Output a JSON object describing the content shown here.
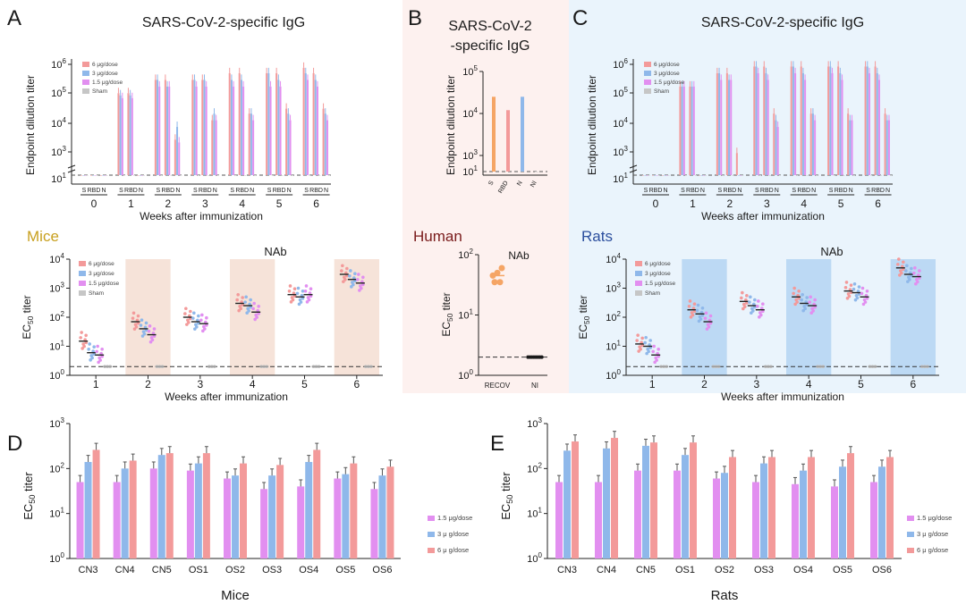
{
  "colors": {
    "dose6": "#f39a9a",
    "dose3": "#8fb8ea",
    "dose15": "#e28ff0",
    "sham": "#c6c6c6",
    "human": "#f5a565",
    "bgHuman": "#fdf1ef",
    "bgRats": "#eaf4fc",
    "shadeMice": "#f6e3d9",
    "shadeRats": "#bcd9f4",
    "mice": "#c8a01f",
    "human_label": "#7a1c1c",
    "rats": "#2c4f9e"
  },
  "panel_labels": {
    "A": "A",
    "B": "B",
    "C": "C",
    "D": "D",
    "E": "E"
  },
  "species": {
    "mice": "Mice",
    "human": "Human",
    "rats": "Rats"
  },
  "chart_data": [
    {
      "id": "A_top",
      "type": "bar",
      "title": "SARS-CoV-2-specific IgG",
      "xlabel": "Weeks after immunization",
      "ylabel": "Endpoint dilution titer",
      "scale": "log",
      "ylim": [
        10,
        1000000
      ],
      "break_after": "10^1",
      "groups": [
        "0",
        "1",
        "2",
        "3",
        "4",
        "5",
        "6"
      ],
      "subcategories": [
        "S",
        "RBD",
        "N"
      ],
      "legend": [
        "6 μg/dose",
        "3 μg/dose",
        "1.5 μg/dose",
        "Sham"
      ],
      "series": [
        {
          "name": "6 μg/dose",
          "S": [
            10,
            50000,
            200000,
            200000,
            400000,
            400000,
            700000
          ],
          "RBD": [
            10,
            50000,
            200000,
            200000,
            400000,
            400000,
            400000
          ],
          "N": [
            10,
            10,
            400,
            3000,
            6000,
            10000,
            10000
          ]
        },
        {
          "name": "3 μg/dose",
          "S": [
            10,
            40000,
            200000,
            200000,
            200000,
            400000,
            400000
          ],
          "RBD": [
            10,
            40000,
            100000,
            200000,
            200000,
            200000,
            200000
          ],
          "N": [
            10,
            10,
            1500,
            6000,
            6000,
            6000,
            6000
          ]
        },
        {
          "name": "1.5 μg/dose",
          "S": [
            10,
            30000,
            100000,
            100000,
            100000,
            100000,
            200000
          ],
          "RBD": [
            10,
            30000,
            100000,
            100000,
            100000,
            100000,
            100000
          ],
          "N": [
            10,
            10,
            300,
            3000,
            3000,
            3000,
            3000
          ]
        },
        {
          "name": "Sham",
          "S": [
            10,
            10,
            10,
            10,
            10,
            10,
            10
          ],
          "RBD": [
            10,
            10,
            10,
            10,
            10,
            10,
            10
          ],
          "N": [
            10,
            10,
            10,
            10,
            10,
            10,
            10
          ]
        }
      ]
    },
    {
      "id": "B_top",
      "type": "bar",
      "title": "SARS-CoV-2 -specific IgG",
      "ylabel": "Endpoint dilution titer",
      "scale": "log",
      "ylim": [
        10,
        100000
      ],
      "categories": [
        "S",
        "RBD",
        "N",
        "NI"
      ],
      "values": [
        25000,
        12000,
        25000,
        10
      ],
      "bar_colors": [
        "#f5a565",
        "#f39a9a",
        "#8fb8ea",
        "#c6c6c6"
      ]
    },
    {
      "id": "C_top",
      "type": "bar",
      "title": "SARS-CoV-2-specific IgG",
      "xlabel": "Weeks after immunization",
      "ylabel": "Endpoint dilution titer",
      "scale": "log",
      "ylim": [
        10,
        1000000
      ],
      "break_after": "10^1",
      "groups": [
        "0",
        "1",
        "2",
        "3",
        "4",
        "5",
        "6"
      ],
      "subcategories": [
        "S",
        "RBD",
        "N"
      ],
      "legend": [
        "6 μg/dose",
        "3 μg/dose",
        "1.5 μg/dose",
        "Sham"
      ],
      "series": [
        {
          "name": "6 μg/dose",
          "S": [
            10,
            100000,
            400000,
            800000,
            800000,
            800000,
            800000
          ],
          "RBD": [
            10,
            100000,
            400000,
            800000,
            800000,
            800000,
            800000
          ],
          "N": [
            10,
            10,
            100,
            6000,
            6000,
            6000,
            6000
          ]
        },
        {
          "name": "3 μg/dose",
          "S": [
            10,
            100000,
            400000,
            800000,
            800000,
            800000,
            800000
          ],
          "RBD": [
            10,
            100000,
            200000,
            400000,
            400000,
            400000,
            400000
          ],
          "N": [
            10,
            10,
            10,
            3000,
            6000,
            3000,
            3000
          ]
        },
        {
          "name": "1.5 μg/dose",
          "S": [
            10,
            100000,
            200000,
            400000,
            400000,
            400000,
            400000
          ],
          "RBD": [
            10,
            100000,
            200000,
            200000,
            200000,
            200000,
            200000
          ],
          "N": [
            10,
            10,
            10,
            1500,
            3000,
            3000,
            3000
          ]
        },
        {
          "name": "Sham",
          "S": [
            10,
            10,
            10,
            10,
            10,
            10,
            10
          ],
          "RBD": [
            10,
            10,
            10,
            10,
            10,
            10,
            10
          ],
          "N": [
            10,
            10,
            10,
            10,
            10,
            10,
            10
          ]
        }
      ]
    },
    {
      "id": "A_nab",
      "type": "scatter",
      "title": "NAb",
      "xlabel": "Weeks after immunization",
      "scale": "log",
      "ylim": [
        1,
        10000
      ],
      "detection_limit": 2,
      "weeks": [
        "1",
        "2",
        "3",
        "4",
        "5",
        "6"
      ],
      "shaded_weeks": [
        "2",
        "4",
        "6"
      ],
      "legend": [
        "6 μg/dose",
        "3 μg/dose",
        "1.5 μg/dose",
        "Sham"
      ],
      "series": [
        {
          "name": "6 μg/dose",
          "medians": [
            15,
            70,
            100,
            300,
            600,
            3000
          ]
        },
        {
          "name": "3 μg/dose",
          "medians": [
            6,
            40,
            70,
            250,
            500,
            2000
          ]
        },
        {
          "name": "1.5 μg/dose",
          "medians": [
            5,
            25,
            60,
            150,
            600,
            1500
          ]
        },
        {
          "name": "Sham",
          "medians": [
            2,
            2,
            2,
            2,
            2,
            2
          ]
        }
      ]
    },
    {
      "id": "B_nab",
      "type": "scatter",
      "title": "NAb",
      "ylabel": "EC50 titer",
      "scale": "log",
      "ylim": [
        1,
        100
      ],
      "detection_limit": 2,
      "categories": [
        "RECOV",
        "NI"
      ],
      "points": [
        [
          45,
          50,
          60,
          35,
          35
        ],
        [
          2,
          2,
          2,
          2,
          2,
          2,
          2,
          2
        ]
      ],
      "medians": [
        45,
        2
      ]
    },
    {
      "id": "C_nab",
      "type": "scatter",
      "title": "NAb",
      "xlabel": "Weeks after immunization",
      "scale": "log",
      "ylim": [
        1,
        10000
      ],
      "detection_limit": 2,
      "weeks": [
        "1",
        "2",
        "3",
        "4",
        "5",
        "6"
      ],
      "shaded_weeks": [
        "2",
        "4",
        "6"
      ],
      "legend": [
        "6 μg/dose",
        "3 μg/dose",
        "1.5 μg/dose",
        "Sham"
      ],
      "series": [
        {
          "name": "6 μg/dose",
          "medians": [
            12,
            180,
            350,
            500,
            800,
            5000
          ]
        },
        {
          "name": "3 μg/dose",
          "medians": [
            10,
            130,
            250,
            300,
            700,
            3000
          ]
        },
        {
          "name": "1.5 μg/dose",
          "medians": [
            5,
            70,
            180,
            250,
            500,
            2500
          ]
        },
        {
          "name": "Sham",
          "medians": [
            2,
            2,
            2,
            2,
            2,
            2
          ]
        }
      ]
    },
    {
      "id": "D",
      "type": "bar",
      "xlabel": "Mice",
      "ylabel": "EC50 titer",
      "scale": "log",
      "ylim": [
        1,
        1000
      ],
      "categories": [
        "CN3",
        "CN4",
        "CN5",
        "OS1",
        "OS2",
        "OS3",
        "OS4",
        "OS5",
        "OS6"
      ],
      "legend": [
        "1.5  μg/dose",
        "3 μ g/dose",
        "6 μ g/dose"
      ],
      "series": [
        {
          "name": "1.5  μg/dose",
          "values": [
            50,
            50,
            100,
            90,
            60,
            35,
            40,
            60,
            35
          ]
        },
        {
          "name": "3 μ g/dose",
          "values": [
            140,
            100,
            200,
            130,
            70,
            70,
            140,
            75,
            70
          ]
        },
        {
          "name": "6 μ g/dose",
          "values": [
            260,
            150,
            220,
            220,
            130,
            120,
            260,
            130,
            110
          ]
        }
      ]
    },
    {
      "id": "E",
      "type": "bar",
      "xlabel": "Rats",
      "ylabel": "EC50 titer",
      "scale": "log",
      "ylim": [
        1,
        1000
      ],
      "categories": [
        "CN3",
        "CN4",
        "CN5",
        "OS1",
        "OS2",
        "OS3",
        "OS4",
        "OS5",
        "OS6"
      ],
      "legend": [
        "1.5  μg/dose",
        "3 μ g/dose",
        "6 μ g/dose"
      ],
      "series": [
        {
          "name": "1.5  μg/dose",
          "values": [
            50,
            50,
            90,
            90,
            60,
            50,
            45,
            40,
            50
          ]
        },
        {
          "name": "3 μ g/dose",
          "values": [
            250,
            280,
            320,
            200,
            80,
            130,
            90,
            110,
            110
          ]
        },
        {
          "name": "6 μ g/dose",
          "values": [
            400,
            480,
            380,
            380,
            180,
            180,
            180,
            220,
            180
          ]
        }
      ]
    }
  ]
}
